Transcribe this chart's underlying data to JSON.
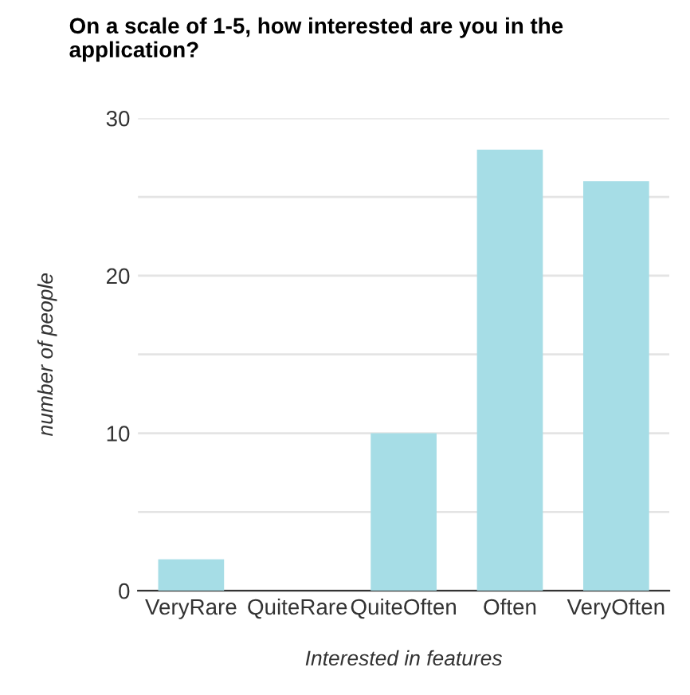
{
  "chart_data": {
    "type": "bar",
    "title": "On a scale of 1-5, how interested are you in the application?",
    "xlabel": "Interested in features",
    "ylabel": "number of people",
    "categories": [
      "VeryRare",
      "QuiteRare",
      "QuiteOften",
      "Often",
      "VeryOften"
    ],
    "values": [
      2,
      0,
      10,
      28,
      26
    ],
    "color": "#a6dde6",
    "ylim": [
      0,
      30
    ],
    "yticks": [
      0,
      {
        "value": 5,
        "label": null
      },
      10,
      {
        "value": 15,
        "label": null
      },
      20,
      {
        "value": 25,
        "label": null
      },
      30
    ],
    "grid": "y"
  }
}
